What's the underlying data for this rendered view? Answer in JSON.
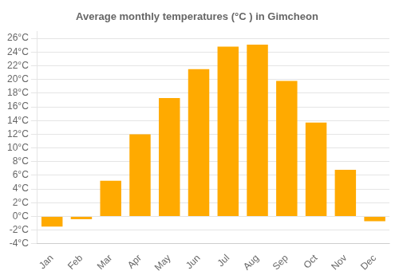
{
  "chart_data": {
    "type": "bar",
    "title": "Average monthly temperatures (°C ) in Gimcheon",
    "categories": [
      "Jan",
      "Feb",
      "Mar",
      "Apr",
      "May",
      "Jun",
      "Jul",
      "Aug",
      "Sep",
      "Oct",
      "Nov",
      "Dec"
    ],
    "values": [
      -1.5,
      -0.4,
      5.2,
      12.0,
      17.3,
      21.5,
      24.8,
      25.1,
      19.8,
      13.7,
      6.8,
      -0.7
    ],
    "color": "#FFAA00",
    "ylim": [
      -4,
      27
    ],
    "yticks": [
      {
        "value": -4,
        "label": "-4°C"
      },
      {
        "value": -2,
        "label": "-2°C"
      },
      {
        "value": 0,
        "label": "0°C"
      },
      {
        "value": 2,
        "label": "2°C"
      },
      {
        "value": 4,
        "label": "4°C"
      },
      {
        "value": 6,
        "label": "6°C"
      },
      {
        "value": 8,
        "label": "8°C"
      },
      {
        "value": 10,
        "label": "10°C"
      },
      {
        "value": 12,
        "label": "12°C"
      },
      {
        "value": 14,
        "label": "14°C"
      },
      {
        "value": 16,
        "label": "16°C"
      },
      {
        "value": 18,
        "label": "18°C"
      },
      {
        "value": 20,
        "label": "20°C"
      },
      {
        "value": 22,
        "label": "22°C"
      },
      {
        "value": 24,
        "label": "24°C"
      },
      {
        "value": 26,
        "label": "26°C"
      }
    ],
    "grid": true
  }
}
